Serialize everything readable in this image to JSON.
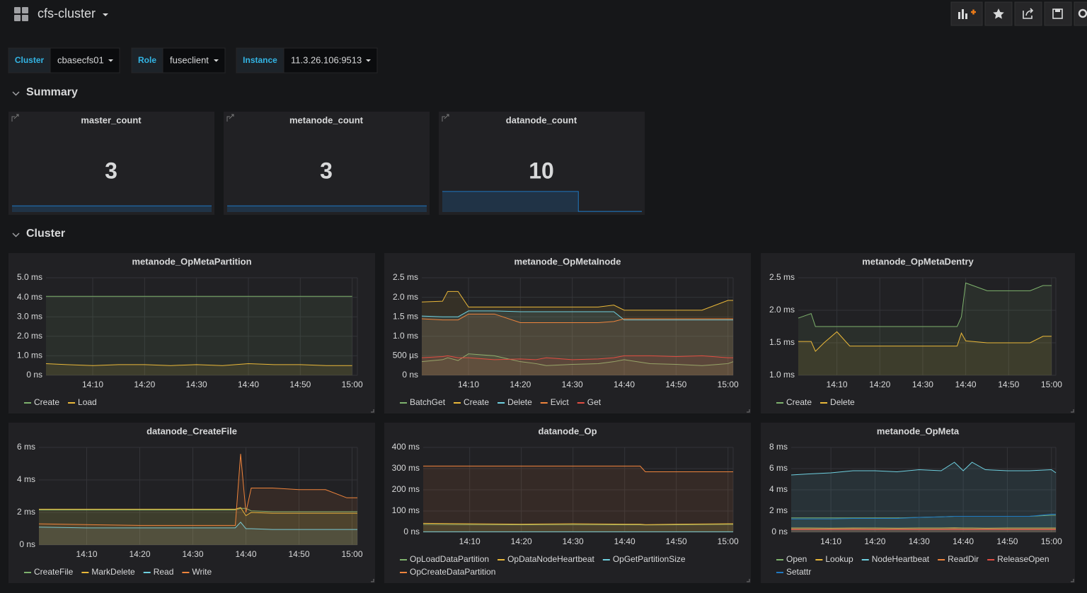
{
  "header": {
    "title": "cfs-cluster"
  },
  "variables": [
    {
      "label": "Cluster",
      "value": "cbasecfs01"
    },
    {
      "label": "Role",
      "value": "fuseclient"
    },
    {
      "label": "Instance",
      "value": "11.3.26.106:9513"
    }
  ],
  "rows": [
    {
      "title": "Summary"
    },
    {
      "title": "Cluster"
    }
  ],
  "stats": [
    {
      "title": "master_count",
      "value": 3,
      "sparkline": [
        3,
        3,
        3,
        3,
        3,
        3,
        3,
        3,
        3,
        3,
        3,
        3
      ],
      "sparkline_ylim": [
        0,
        11
      ]
    },
    {
      "title": "metanode_count",
      "value": 3,
      "sparkline": [
        3,
        3,
        3,
        3,
        3,
        3,
        3,
        3,
        3,
        3,
        3,
        3
      ],
      "sparkline_ylim": [
        0,
        11
      ]
    },
    {
      "title": "datanode_count",
      "value": 10,
      "sparkline": [
        10,
        10,
        10,
        10,
        10,
        10,
        10,
        10,
        0.3,
        0.3,
        0.3,
        0.3
      ],
      "sparkline_ylim": [
        0,
        11
      ]
    }
  ],
  "chart_data": [
    {
      "type": "line",
      "title": "metanode_OpMetaPartition",
      "fill": true,
      "grid": true,
      "x": [
        "14:01",
        "14:05",
        "14:10",
        "14:15",
        "14:20",
        "14:25",
        "14:30",
        "14:35",
        "14:40",
        "14:45",
        "14:50",
        "14:55",
        "15:00"
      ],
      "xlim": [
        "14:01",
        "15:01"
      ],
      "xticks": [
        "14:10",
        "14:20",
        "14:30",
        "14:40",
        "14:50",
        "15:00"
      ],
      "ylim": [
        0,
        5
      ],
      "yticks": [
        {
          "value": 0,
          "label": "0 ns"
        },
        {
          "value": 1,
          "label": "1.0 ms"
        },
        {
          "value": 2,
          "label": "2.0 ms"
        },
        {
          "value": 3,
          "label": "3.0 ms"
        },
        {
          "value": 4,
          "label": "4.0 ms"
        },
        {
          "value": 5,
          "label": "5.0 ms"
        }
      ],
      "series": [
        {
          "name": "Create",
          "color": "#7eb26d",
          "values": [
            4.05,
            4.05,
            4.05,
            4.05,
            4.05,
            4.05,
            4.05,
            4.05,
            4.05,
            4.05,
            4.05,
            4.05,
            4.05
          ]
        },
        {
          "name": "Load",
          "color": "#eab839",
          "values": [
            0.6,
            0.55,
            0.5,
            0.55,
            0.55,
            0.5,
            0.55,
            0.5,
            0.6,
            0.55,
            0.55,
            0.5,
            0.5
          ]
        }
      ]
    },
    {
      "type": "line",
      "title": "metanode_OpMetaInode",
      "fill": true,
      "grid": true,
      "x": [
        "14:01",
        "14:05",
        "14:06",
        "14:08",
        "14:10",
        "14:15",
        "14:20",
        "14:23",
        "14:25",
        "14:30",
        "14:35",
        "14:38",
        "14:40",
        "14:45",
        "14:50",
        "14:55",
        "15:00",
        "15:01"
      ],
      "xlim": [
        "14:01",
        "15:01"
      ],
      "xticks": [
        "14:10",
        "14:20",
        "14:30",
        "14:40",
        "14:50",
        "15:00"
      ],
      "ylim": [
        0,
        2.5
      ],
      "yticks": [
        {
          "value": 0,
          "label": "0 ns"
        },
        {
          "value": 0.5,
          "label": "500 µs"
        },
        {
          "value": 1,
          "label": "1.0 ms"
        },
        {
          "value": 1.5,
          "label": "1.5 ms"
        },
        {
          "value": 2,
          "label": "2.0 ms"
        },
        {
          "value": 2.5,
          "label": "2.5 ms"
        }
      ],
      "series": [
        {
          "name": "BatchGet",
          "color": "#7eb26d",
          "values": [
            0.35,
            0.4,
            0.45,
            0.38,
            0.55,
            0.5,
            0.35,
            0.3,
            0.25,
            0.28,
            0.3,
            0.35,
            0.4,
            0.3,
            0.28,
            0.25,
            0.3,
            0.35
          ]
        },
        {
          "name": "Create",
          "color": "#eab839",
          "values": [
            1.88,
            1.9,
            2.15,
            2.15,
            1.75,
            1.75,
            1.75,
            1.75,
            1.75,
            1.75,
            1.75,
            1.8,
            1.67,
            1.67,
            1.67,
            1.67,
            1.92,
            1.92
          ]
        },
        {
          "name": "Delete",
          "color": "#6ed0e0",
          "values": [
            1.52,
            1.5,
            1.5,
            1.5,
            1.65,
            1.65,
            1.63,
            1.63,
            1.63,
            1.63,
            1.63,
            1.63,
            1.42,
            1.42,
            1.42,
            1.42,
            1.42,
            1.42
          ]
        },
        {
          "name": "Evict",
          "color": "#ef843c",
          "values": [
            1.45,
            1.42,
            1.42,
            1.42,
            1.57,
            1.57,
            1.35,
            1.35,
            1.35,
            1.35,
            1.35,
            1.38,
            1.45,
            1.45,
            1.45,
            1.45,
            1.45,
            1.45
          ]
        },
        {
          "name": "Get",
          "color": "#e24d42",
          "values": [
            0.45,
            0.48,
            0.5,
            0.45,
            0.45,
            0.4,
            0.42,
            0.4,
            0.45,
            0.4,
            0.42,
            0.45,
            0.5,
            0.5,
            0.48,
            0.5,
            0.45,
            0.45
          ]
        }
      ]
    },
    {
      "type": "line",
      "title": "metanode_OpMetaDentry",
      "fill": true,
      "grid": true,
      "x": [
        "14:01",
        "14:04",
        "14:05",
        "14:07",
        "14:10",
        "14:13",
        "14:20",
        "14:30",
        "14:38",
        "14:39",
        "14:40",
        "14:45",
        "14:50",
        "14:55",
        "14:58",
        "15:00"
      ],
      "xlim": [
        "14:01",
        "15:01"
      ],
      "xticks": [
        "14:10",
        "14:20",
        "14:30",
        "14:40",
        "14:50",
        "15:00"
      ],
      "ylim": [
        1,
        2.5
      ],
      "yticks": [
        {
          "value": 1,
          "label": "1.0 ms"
        },
        {
          "value": 1.5,
          "label": "1.5 ms"
        },
        {
          "value": 2,
          "label": "2.0 ms"
        },
        {
          "value": 2.5,
          "label": "2.5 ms"
        }
      ],
      "series": [
        {
          "name": "Create",
          "color": "#7eb26d",
          "values": [
            1.88,
            1.95,
            1.75,
            1.75,
            1.75,
            1.75,
            1.75,
            1.75,
            1.75,
            1.9,
            2.42,
            2.3,
            2.3,
            2.3,
            2.38,
            2.38
          ]
        },
        {
          "name": "Delete",
          "color": "#eab839",
          "values": [
            1.52,
            1.52,
            1.37,
            1.5,
            1.67,
            1.45,
            1.45,
            1.45,
            1.45,
            1.65,
            1.53,
            1.5,
            1.5,
            1.5,
            1.6,
            1.6
          ]
        }
      ]
    },
    {
      "type": "line",
      "title": "datanode_CreateFile",
      "fill": true,
      "grid": true,
      "x": [
        "14:01",
        "14:10",
        "14:20",
        "14:30",
        "14:38",
        "14:39",
        "14:40",
        "14:41",
        "14:45",
        "14:50",
        "14:55",
        "14:59",
        "15:00",
        "15:01"
      ],
      "xlim": [
        "14:01",
        "15:01"
      ],
      "xticks": [
        "14:10",
        "14:20",
        "14:30",
        "14:40",
        "14:50",
        "15:00"
      ],
      "ylim": [
        0,
        6
      ],
      "yticks": [
        {
          "value": 0,
          "label": "0 ns"
        },
        {
          "value": 2,
          "label": "2 ms"
        },
        {
          "value": 4,
          "label": "4 ms"
        },
        {
          "value": 6,
          "label": "6 ms"
        }
      ],
      "series": [
        {
          "name": "CreateFile",
          "color": "#7eb26d",
          "values": [
            2.15,
            2.15,
            2.15,
            2.15,
            2.15,
            2.25,
            2.25,
            2.1,
            2.05,
            2.05,
            2.05,
            2.05,
            2.05,
            2.05
          ]
        },
        {
          "name": "MarkDelete",
          "color": "#eab839",
          "values": [
            2.2,
            2.2,
            2.2,
            2.2,
            2.2,
            2.3,
            1.8,
            2.0,
            1.95,
            1.95,
            1.95,
            1.95,
            1.95,
            1.95
          ]
        },
        {
          "name": "Read",
          "color": "#6ed0e0",
          "values": [
            1.1,
            1.05,
            1.05,
            1.05,
            1.05,
            1.4,
            1.0,
            1.0,
            0.95,
            0.95,
            0.95,
            0.95,
            0.95,
            0.95
          ]
        },
        {
          "name": "Write",
          "color": "#ef843c",
          "values": [
            1.3,
            1.25,
            1.2,
            1.2,
            1.2,
            5.6,
            2.0,
            3.5,
            3.5,
            3.4,
            3.4,
            2.9,
            2.9,
            2.9
          ]
        }
      ]
    },
    {
      "type": "line",
      "title": "datanode_Op",
      "fill": true,
      "grid": true,
      "x": [
        "14:01",
        "14:10",
        "14:20",
        "14:30",
        "14:40",
        "14:43",
        "14:44",
        "14:50",
        "15:00",
        "15:01"
      ],
      "xlim": [
        "14:01",
        "15:01"
      ],
      "xticks": [
        "14:10",
        "14:20",
        "14:30",
        "14:40",
        "14:50",
        "15:00"
      ],
      "ylim": [
        0,
        400
      ],
      "yticks": [
        {
          "value": 0,
          "label": "0 ns"
        },
        {
          "value": 100,
          "label": "100 ms"
        },
        {
          "value": 200,
          "label": "200 ms"
        },
        {
          "value": 300,
          "label": "300 ms"
        },
        {
          "value": 400,
          "label": "400 ms"
        }
      ],
      "series": [
        {
          "name": "OpLoadDataPartition",
          "color": "#7eb26d",
          "values": [
            37,
            36,
            35,
            36,
            35,
            35,
            34,
            35,
            37,
            37
          ]
        },
        {
          "name": "OpDataNodeHeartbeat",
          "color": "#eab839",
          "values": [
            42,
            40,
            38,
            40,
            38,
            38,
            36,
            38,
            40,
            40
          ]
        },
        {
          "name": "OpGetPartitionSize",
          "color": "#6ed0e0",
          "values": [
            2,
            2,
            2,
            2,
            2,
            2,
            2,
            2,
            2,
            2
          ]
        },
        {
          "name": "OpCreateDataPartition",
          "color": "#ef843c",
          "values": [
            312,
            312,
            312,
            312,
            312,
            312,
            285,
            285,
            285,
            285
          ]
        }
      ]
    },
    {
      "type": "line",
      "title": "metanode_OpMeta",
      "fill": true,
      "grid": true,
      "x": [
        "14:01",
        "14:05",
        "14:10",
        "14:15",
        "14:20",
        "14:25",
        "14:30",
        "14:35",
        "14:38",
        "14:40",
        "14:42",
        "14:45",
        "14:50",
        "14:55",
        "15:00",
        "15:01"
      ],
      "xlim": [
        "14:01",
        "15:01"
      ],
      "xticks": [
        "14:10",
        "14:20",
        "14:30",
        "14:40",
        "14:50",
        "15:00"
      ],
      "ylim": [
        0,
        8
      ],
      "yticks": [
        {
          "value": 0,
          "label": "0 ns"
        },
        {
          "value": 2,
          "label": "2 ms"
        },
        {
          "value": 4,
          "label": "4 ms"
        },
        {
          "value": 6,
          "label": "6 ms"
        },
        {
          "value": 8,
          "label": "8 ms"
        }
      ],
      "series": [
        {
          "name": "Open",
          "color": "#7eb26d",
          "values": [
            1.35,
            1.35,
            1.35,
            1.35,
            1.35,
            1.35,
            1.4,
            1.45,
            1.5,
            1.5,
            1.5,
            1.5,
            1.5,
            1.5,
            1.6,
            1.6
          ]
        },
        {
          "name": "Lookup",
          "color": "#eab839",
          "values": [
            0.4,
            0.4,
            0.38,
            0.4,
            0.4,
            0.38,
            0.4,
            0.4,
            0.42,
            0.4,
            0.4,
            0.38,
            0.4,
            0.4,
            0.4,
            0.4
          ]
        },
        {
          "name": "NodeHeartbeat",
          "color": "#6ed0e0",
          "values": [
            5.4,
            5.5,
            5.6,
            5.8,
            5.8,
            5.7,
            5.9,
            5.8,
            6.6,
            5.8,
            6.6,
            5.9,
            5.8,
            5.8,
            5.9,
            5.6
          ]
        },
        {
          "name": "ReadDir",
          "color": "#ef843c",
          "values": [
            0.3,
            0.3,
            0.3,
            0.32,
            0.3,
            0.3,
            0.3,
            0.3,
            0.32,
            0.3,
            0.3,
            0.3,
            0.3,
            0.3,
            0.3,
            0.3
          ]
        },
        {
          "name": "ReleaseOpen",
          "color": "#e24d42",
          "values": [
            0.25,
            0.25,
            0.25,
            0.25,
            0.25,
            0.25,
            0.25,
            0.25,
            0.25,
            0.25,
            0.25,
            0.25,
            0.25,
            0.25,
            0.25,
            0.25
          ]
        },
        {
          "name": "Setattr",
          "color": "#1f78c1",
          "values": [
            1.25,
            1.25,
            1.25,
            1.3,
            1.3,
            1.3,
            1.4,
            1.45,
            1.5,
            1.5,
            1.5,
            1.5,
            1.5,
            1.5,
            1.7,
            1.7
          ]
        }
      ]
    }
  ]
}
